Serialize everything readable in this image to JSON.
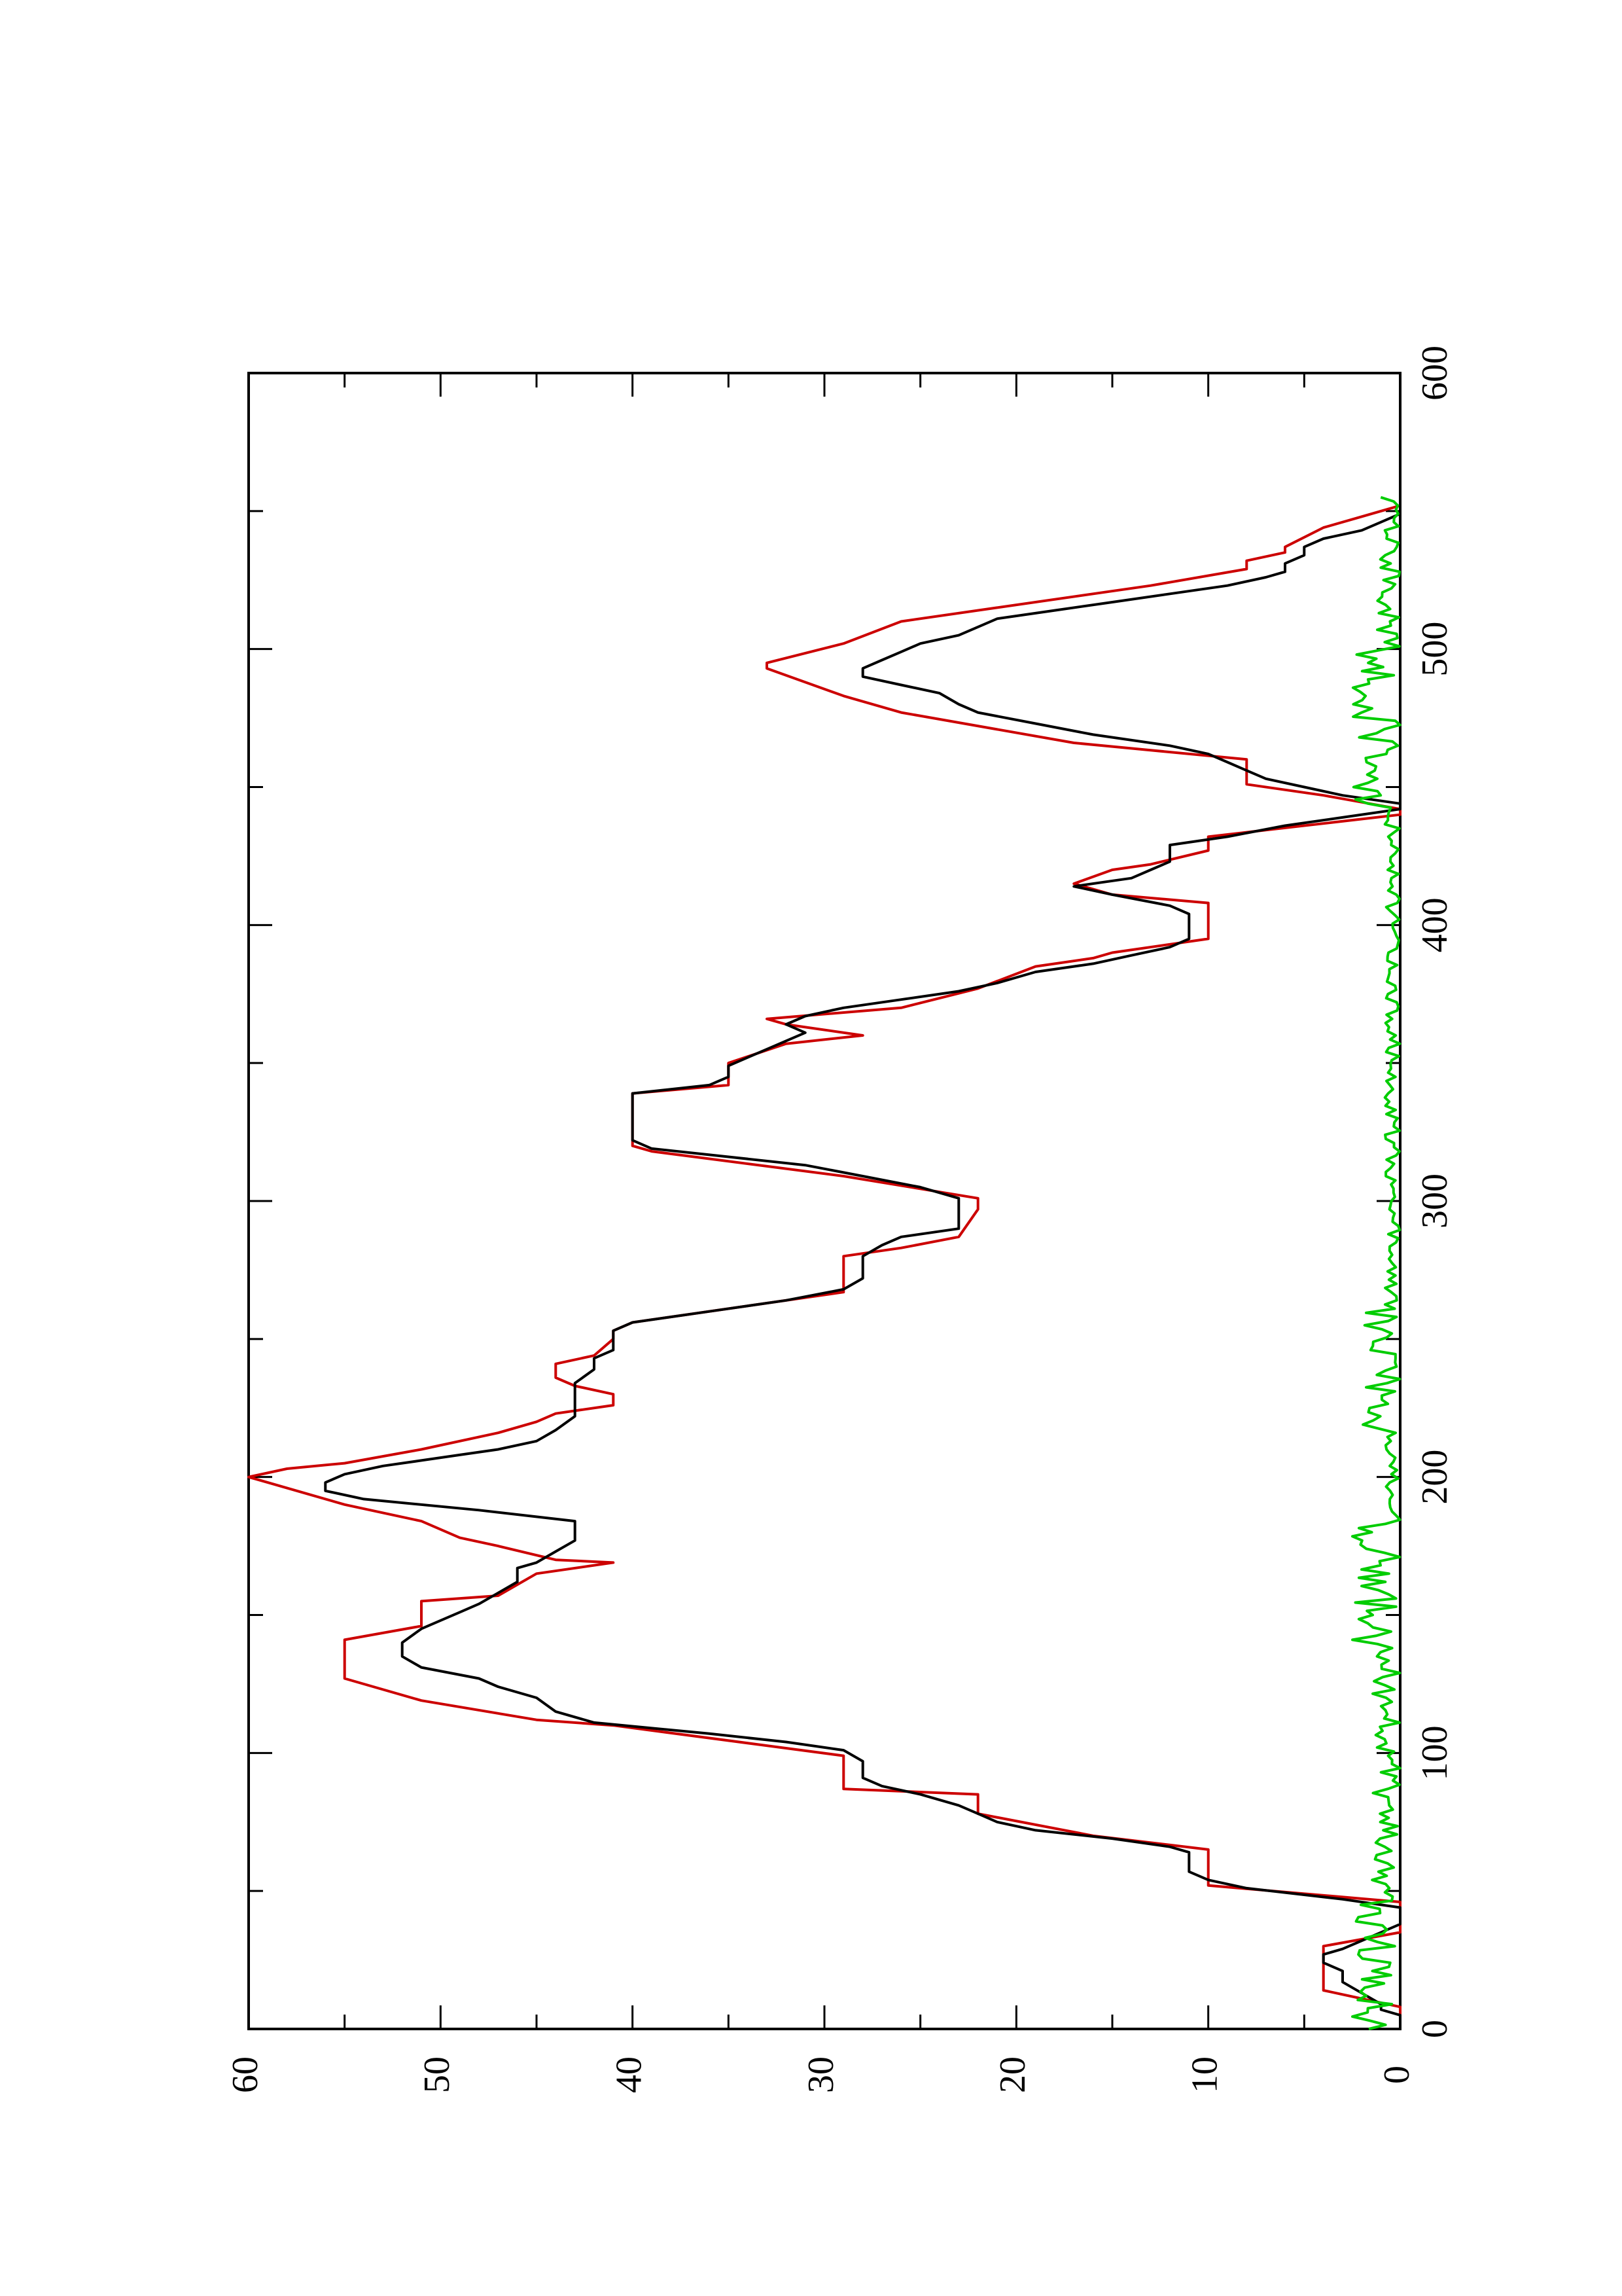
{
  "chart_data": {
    "type": "line",
    "title": "",
    "xlabel": "",
    "ylabel": "",
    "orientation": "rotated-90-ccw",
    "xlim": [
      0,
      600
    ],
    "ylim": [
      0,
      60
    ],
    "x_ticks": [
      "0",
      "100",
      "200",
      "300",
      "400",
      "500",
      "600"
    ],
    "y_ticks": [
      "0",
      "10",
      "20",
      "30",
      "40",
      "50",
      "60"
    ],
    "grid": false,
    "legend": "none",
    "series": [
      {
        "color": "#cc0000",
        "step": true,
        "points": [
          [
            0,
            0
          ],
          [
            8,
            0
          ],
          [
            14,
            4
          ],
          [
            29,
            4
          ],
          [
            30,
            4
          ],
          [
            35,
            0
          ],
          [
            46,
            0
          ],
          [
            52,
            10
          ],
          [
            65,
            10
          ],
          [
            70,
            16
          ],
          [
            78,
            22
          ],
          [
            85,
            22
          ],
          [
            87,
            29
          ],
          [
            99,
            29
          ],
          [
            110,
            41
          ],
          [
            112,
            45
          ],
          [
            119,
            51
          ],
          [
            127,
            55
          ],
          [
            141,
            55
          ],
          [
            146,
            51
          ],
          [
            155,
            51
          ],
          [
            157,
            47
          ],
          [
            165,
            45
          ],
          [
            169,
            41
          ],
          [
            170,
            44
          ],
          [
            175,
            47
          ],
          [
            178,
            49
          ],
          [
            184,
            51
          ],
          [
            190,
            55
          ],
          [
            198,
            59
          ],
          [
            200,
            60
          ],
          [
            203,
            58
          ],
          [
            205,
            55
          ],
          [
            210,
            51
          ],
          [
            216,
            47
          ],
          [
            220,
            45
          ],
          [
            223,
            44
          ],
          [
            226,
            41
          ],
          [
            230,
            41
          ],
          [
            233,
            43
          ],
          [
            236,
            44
          ],
          [
            241,
            44
          ],
          [
            244,
            42
          ],
          [
            250,
            41
          ],
          [
            253,
            41
          ],
          [
            256,
            40
          ],
          [
            267,
            29
          ],
          [
            280,
            29
          ],
          [
            283,
            26
          ],
          [
            287,
            23
          ],
          [
            297,
            22
          ],
          [
            301,
            22
          ],
          [
            309,
            29
          ],
          [
            318,
            39
          ],
          [
            320,
            40
          ],
          [
            339,
            40
          ],
          [
            342,
            35
          ],
          [
            350,
            35
          ],
          [
            357,
            32
          ],
          [
            360,
            28
          ],
          [
            364,
            32
          ],
          [
            366,
            33
          ],
          [
            370,
            26
          ],
          [
            377,
            22
          ],
          [
            385,
            19
          ],
          [
            388,
            16
          ],
          [
            390,
            15
          ],
          [
            395,
            10
          ],
          [
            408,
            10
          ],
          [
            411,
            15
          ],
          [
            415,
            17
          ],
          [
            420,
            15
          ],
          [
            422,
            13
          ],
          [
            427,
            10
          ],
          [
            432,
            10
          ],
          [
            436,
            5
          ],
          [
            440,
            0
          ],
          [
            442,
            0
          ],
          [
            447,
            4
          ],
          [
            451,
            8
          ],
          [
            460,
            8
          ],
          [
            466,
            17
          ],
          [
            477,
            26
          ],
          [
            483,
            29
          ],
          [
            493,
            33
          ],
          [
            495,
            33
          ],
          [
            502,
            29
          ],
          [
            510,
            26
          ],
          [
            515,
            21
          ],
          [
            523,
            13
          ],
          [
            529,
            8
          ],
          [
            532,
            8
          ],
          [
            535,
            6
          ],
          [
            537,
            6
          ],
          [
            544,
            4
          ],
          [
            548,
            2
          ],
          [
            552,
            0
          ],
          [
            556,
            0
          ]
        ]
      },
      {
        "color": "#000000",
        "step": false,
        "points": [
          [
            0,
            0
          ],
          [
            5,
            0
          ],
          [
            7,
            1
          ],
          [
            9,
            1
          ],
          [
            13,
            2
          ],
          [
            17,
            3
          ],
          [
            21,
            3
          ],
          [
            24,
            4
          ],
          [
            27,
            4
          ],
          [
            29,
            3
          ],
          [
            32,
            2
          ],
          [
            35,
            1
          ],
          [
            38,
            0
          ],
          [
            44,
            0
          ],
          [
            47,
            3
          ],
          [
            51,
            8
          ],
          [
            54,
            10
          ],
          [
            57,
            11
          ],
          [
            60,
            11
          ],
          [
            64,
            11
          ],
          [
            66,
            12
          ],
          [
            69,
            15
          ],
          [
            72,
            19
          ],
          [
            75,
            21
          ],
          [
            78,
            22
          ],
          [
            81,
            23
          ],
          [
            85,
            25
          ],
          [
            88,
            27
          ],
          [
            91,
            28
          ],
          [
            94,
            28
          ],
          [
            97,
            28
          ],
          [
            101,
            29
          ],
          [
            104,
            32
          ],
          [
            107,
            36
          ],
          [
            111,
            42
          ],
          [
            115,
            44
          ],
          [
            120,
            45
          ],
          [
            124,
            47
          ],
          [
            127,
            48
          ],
          [
            131,
            51
          ],
          [
            135,
            52
          ],
          [
            140,
            52
          ],
          [
            145,
            51
          ],
          [
            148,
            50
          ],
          [
            151,
            49
          ],
          [
            154,
            48
          ],
          [
            158,
            47
          ],
          [
            162,
            46
          ],
          [
            165,
            46
          ],
          [
            167,
            46
          ],
          [
            169,
            45
          ],
          [
            173,
            44
          ],
          [
            177,
            43
          ],
          [
            180,
            43
          ],
          [
            184,
            43
          ],
          [
            188,
            48
          ],
          [
            192,
            54
          ],
          [
            195,
            56
          ],
          [
            198,
            56
          ],
          [
            201,
            55
          ],
          [
            204,
            53
          ],
          [
            206,
            51
          ],
          [
            208,
            49
          ],
          [
            210,
            47
          ],
          [
            213,
            45
          ],
          [
            217,
            44
          ],
          [
            222,
            43
          ],
          [
            228,
            43
          ],
          [
            234,
            43
          ],
          [
            239,
            42
          ],
          [
            243,
            42
          ],
          [
            246,
            41
          ],
          [
            250,
            41
          ],
          [
            253,
            41
          ],
          [
            256,
            40
          ],
          [
            260,
            36
          ],
          [
            264,
            32
          ],
          [
            268,
            29
          ],
          [
            272,
            28
          ],
          [
            280,
            28
          ],
          [
            284,
            27
          ],
          [
            287,
            26
          ],
          [
            290,
            23
          ],
          [
            294,
            23
          ],
          [
            298,
            23
          ],
          [
            301,
            23
          ],
          [
            305,
            25
          ],
          [
            309,
            28
          ],
          [
            313,
            31
          ],
          [
            316,
            35
          ],
          [
            319,
            39
          ],
          [
            322,
            40
          ],
          [
            330,
            40
          ],
          [
            335,
            40
          ],
          [
            339,
            40
          ],
          [
            342,
            36
          ],
          [
            345,
            35
          ],
          [
            349,
            35
          ],
          [
            352,
            34
          ],
          [
            355,
            33
          ],
          [
            358,
            32
          ],
          [
            361,
            31
          ],
          [
            364,
            32
          ],
          [
            367,
            31
          ],
          [
            370,
            29
          ],
          [
            373,
            26
          ],
          [
            376,
            23
          ],
          [
            379,
            21
          ],
          [
            383,
            19
          ],
          [
            386,
            16
          ],
          [
            389,
            14
          ],
          [
            392,
            12
          ],
          [
            395,
            11
          ],
          [
            398,
            11
          ],
          [
            401,
            11
          ],
          [
            404,
            11
          ],
          [
            407,
            12
          ],
          [
            411,
            15
          ],
          [
            414,
            17
          ],
          [
            417,
            14
          ],
          [
            420,
            13
          ],
          [
            423,
            12
          ],
          [
            426,
            12
          ],
          [
            429,
            12
          ],
          [
            432,
            9
          ],
          [
            436,
            6
          ],
          [
            439,
            3
          ],
          [
            442,
            0
          ],
          [
            444,
            0
          ],
          [
            447,
            3
          ],
          [
            450,
            5
          ],
          [
            453,
            7
          ],
          [
            456,
            8
          ],
          [
            459,
            9
          ],
          [
            462,
            10
          ],
          [
            465,
            12
          ],
          [
            469,
            16
          ],
          [
            473,
            19
          ],
          [
            477,
            22
          ],
          [
            480,
            23
          ],
          [
            484,
            24
          ],
          [
            487,
            26
          ],
          [
            490,
            28
          ],
          [
            493,
            28
          ],
          [
            496,
            27
          ],
          [
            499,
            26
          ],
          [
            502,
            25
          ],
          [
            505,
            23
          ],
          [
            508,
            22
          ],
          [
            511,
            21
          ],
          [
            514,
            18
          ],
          [
            517,
            15
          ],
          [
            520,
            12
          ],
          [
            523,
            9
          ],
          [
            526,
            7
          ],
          [
            528,
            6
          ],
          [
            531,
            6
          ],
          [
            534,
            5
          ],
          [
            537,
            5
          ],
          [
            540,
            4
          ],
          [
            543,
            2
          ],
          [
            546,
            1
          ],
          [
            549,
            0
          ],
          [
            553,
            0
          ],
          [
            556,
            0
          ]
        ]
      },
      {
        "color": "#00cc00",
        "step": false,
        "noise": true,
        "x_range": [
          0,
          556
        ],
        "baseline": 0,
        "typical_amplitude": 1.0,
        "bursts": [
          [
            0,
            50,
            2.5
          ],
          [
            50,
            140,
            1.5
          ],
          [
            140,
            185,
            2.5
          ],
          [
            185,
            210,
            0.8
          ],
          [
            210,
            260,
            2.0
          ],
          [
            260,
            440,
            0.8
          ],
          [
            440,
            500,
            2.5
          ],
          [
            500,
            556,
            1.2
          ]
        ]
      }
    ]
  }
}
